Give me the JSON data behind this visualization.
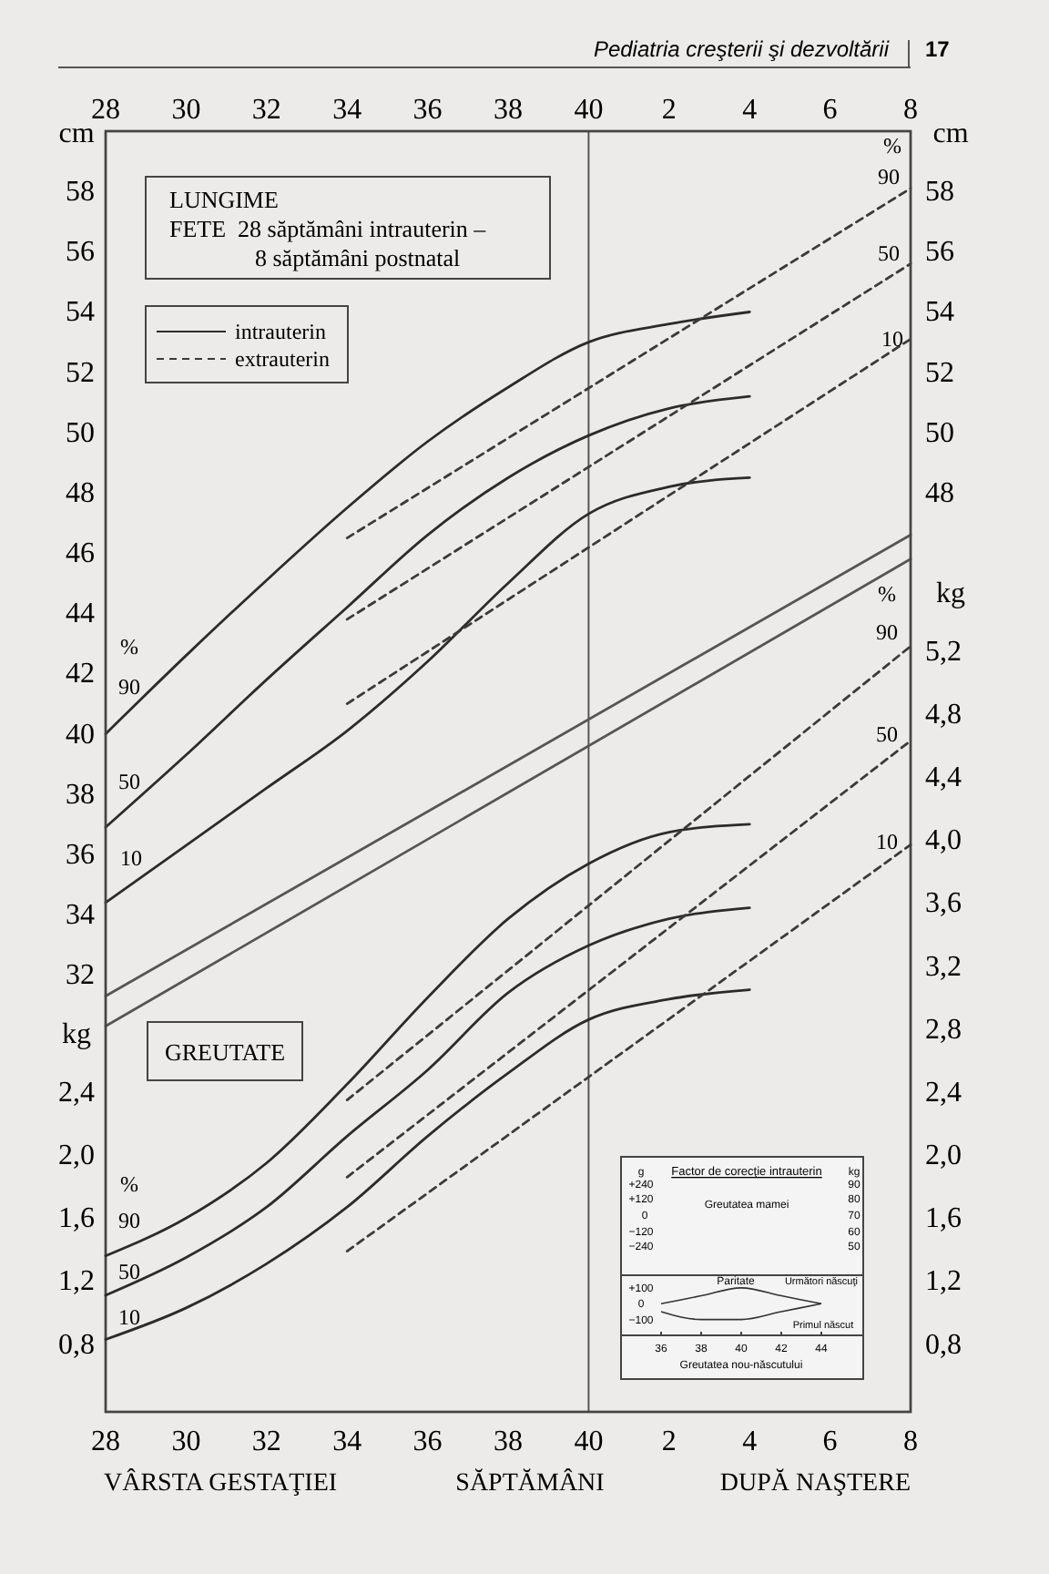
{
  "chart_data": [
    {
      "type": "line",
      "title": "LUNGIME",
      "subtitle": "FETE  28 săptămâni intrauterin –\n8 săptămâni postnatal",
      "ylabel": "cm",
      "y2label": "cm",
      "xlim": [
        28,
        48
      ],
      "xticks": [
        28,
        30,
        32,
        34,
        36,
        38,
        40
      ],
      "x2lim": [
        -12,
        8
      ],
      "x2ticks": [
        2,
        4,
        6,
        8
      ],
      "ylim": [
        17.5,
        60
      ],
      "yticks": [
        32,
        34,
        36,
        38,
        40,
        42,
        44,
        46,
        48,
        50,
        52,
        54,
        56,
        58
      ],
      "y2lim": [
        17.5,
        60
      ],
      "y2ticks": [
        48,
        50,
        52,
        54,
        56,
        58
      ],
      "legend": "top left",
      "grid": false,
      "series": [
        {
          "name": "intrauterin",
          "color": "#2b2b2b",
          "line_style": "solid",
          "x": [
            28,
            30,
            32,
            34,
            36,
            38,
            40,
            42,
            44
          ],
          "values": [
            40.0,
            42.6,
            45.1,
            47.5,
            49.7,
            51.5,
            53.0,
            53.6,
            54.0
          ]
        },
        {
          "color": "#2b2b2b",
          "line_style": "solid",
          "x": [
            28,
            30,
            32,
            34,
            36,
            38,
            40,
            42,
            44
          ],
          "values": [
            36.9,
            39.3,
            41.8,
            44.2,
            46.6,
            48.5,
            49.9,
            50.8,
            51.2
          ]
        },
        {
          "color": "#2b2b2b",
          "line_style": "solid",
          "x": [
            28,
            30,
            32,
            34,
            36,
            38,
            40,
            42,
            44
          ],
          "values": [
            34.4,
            36.3,
            38.2,
            40.1,
            42.4,
            45.0,
            47.3,
            48.2,
            48.5
          ]
        },
        {
          "name": "extrauterin",
          "color": "#3a3a3a",
          "line_style": "dashed",
          "x": [
            34,
            48
          ],
          "values": [
            46.5,
            58.1
          ]
        },
        {
          "color": "#3a3a3a",
          "line_style": "dashed",
          "x": [
            34,
            48
          ],
          "values": [
            43.8,
            55.6
          ]
        },
        {
          "color": "#3a3a3a",
          "line_style": "dashed",
          "x": [
            34,
            48
          ],
          "values": [
            41.0,
            53.1
          ]
        },
        {
          "color": "#555555",
          "line_style": "solid",
          "x": [
            28,
            48
          ],
          "values": [
            31.3,
            46.6
          ]
        },
        {
          "color": "#555555",
          "line_style": "solid",
          "x": [
            28,
            48
          ],
          "values": [
            30.3,
            45.8
          ]
        }
      ],
      "ref_lines": [
        {
          "axis": "x",
          "value": 40,
          "color": "#555555"
        }
      ],
      "annotations": [
        "Pediatria creşterii şi dezvoltării",
        "17",
        "%",
        "90",
        "50",
        "10",
        "%",
        "90",
        "50",
        "10"
      ]
    },
    {
      "type": "line",
      "title": "GREUTATE",
      "xlabel": "SĂPTĂMÂNI",
      "ylabel": "kg",
      "y2label": "kg",
      "xlim": [
        28,
        48
      ],
      "xticks": [
        28,
        30,
        32,
        34,
        36,
        38,
        40
      ],
      "x2lim": [
        -12,
        8
      ],
      "x2ticks": [
        2,
        4,
        6,
        8
      ],
      "ylim": [
        0.37,
        8.5
      ],
      "yticks": [
        {
          "value": 0.8,
          "label": "0,8"
        },
        {
          "value": 1.2,
          "label": "1,2"
        },
        {
          "value": 1.6,
          "label": "1,6"
        },
        {
          "value": 2.0,
          "label": "2,0"
        },
        {
          "value": 2.4,
          "label": "2,4"
        }
      ],
      "y2lim": [
        0.37,
        8.5
      ],
      "y2ticks": [
        {
          "value": 0.8,
          "label": "0,8"
        },
        {
          "value": 1.2,
          "label": "1,2"
        },
        {
          "value": 1.6,
          "label": "1,6"
        },
        {
          "value": 2.0,
          "label": "2,0"
        },
        {
          "value": 2.4,
          "label": "2,4"
        },
        {
          "value": 2.8,
          "label": "2,8"
        },
        {
          "value": 3.2,
          "label": "3,2"
        },
        {
          "value": 3.6,
          "label": "3,6"
        },
        {
          "value": 4.0,
          "label": "4,0"
        },
        {
          "value": 4.4,
          "label": "4,4"
        },
        {
          "value": 4.8,
          "label": "4,8"
        },
        {
          "value": 5.2,
          "label": "5,2"
        }
      ],
      "grid": false,
      "series": [
        {
          "color": "#2b2b2b",
          "line_style": "solid",
          "x": [
            28,
            30,
            32,
            34,
            36,
            38,
            40,
            42,
            44
          ],
          "values": [
            1.36,
            1.6,
            1.95,
            2.45,
            3.0,
            3.5,
            3.85,
            4.05,
            4.1
          ]
        },
        {
          "color": "#2b2b2b",
          "line_style": "solid",
          "x": [
            28,
            30,
            32,
            34,
            36,
            38,
            40,
            42,
            44
          ],
          "values": [
            1.11,
            1.35,
            1.67,
            2.12,
            2.54,
            3.03,
            3.33,
            3.5,
            3.57
          ]
        },
        {
          "color": "#2b2b2b",
          "line_style": "solid",
          "x": [
            28,
            30,
            32,
            34,
            36,
            38,
            40,
            42,
            44
          ],
          "values": [
            0.83,
            1.03,
            1.31,
            1.67,
            2.12,
            2.52,
            2.86,
            2.99,
            3.05
          ]
        },
        {
          "color": "#3a3a3a",
          "line_style": "dashed",
          "x": [
            34,
            48
          ],
          "values": [
            2.35,
            5.23
          ]
        },
        {
          "color": "#3a3a3a",
          "line_style": "dashed",
          "x": [
            34,
            48
          ],
          "values": [
            1.86,
            4.63
          ]
        },
        {
          "color": "#3a3a3a",
          "line_style": "dashed",
          "x": [
            34,
            48
          ],
          "values": [
            1.39,
            3.97
          ]
        }
      ],
      "annotations": [
        "VÂRSTA GESTAŢIEI",
        "DUPĂ NAŞTERE",
        "%",
        "90",
        "50",
        "10",
        "%",
        "90",
        "50",
        "10"
      ]
    },
    {
      "type": "line",
      "title": "Factor de corecţie intrauterin",
      "xlabel": "Greutatea nou-născutului",
      "xlim": [
        36,
        44
      ],
      "xticks": [
        36,
        38,
        40,
        42,
        44
      ],
      "ylim": [
        -200,
        180
      ],
      "yticks": [
        {
          "value": 100,
          "label": "+100"
        },
        0,
        {
          "value": -100,
          "label": "−100"
        }
      ],
      "series": [
        {
          "name": "Următori născuţi",
          "color": "#333333",
          "x": [
            36,
            38,
            40,
            42,
            44
          ],
          "values": [
            0,
            50,
            100,
            50,
            0
          ]
        },
        {
          "name": "Primul născut",
          "color": "#333333",
          "x": [
            36,
            38,
            40,
            42,
            44
          ],
          "values": [
            -50,
            -100,
            -100,
            -50,
            0
          ]
        }
      ],
      "annotations": [
        "g",
        "kg",
        "+240",
        "+120",
        "0",
        "−120",
        "−240",
        "90",
        "80",
        "70",
        "60",
        "50",
        "Greutatea mamei",
        "Paritate"
      ]
    }
  ]
}
